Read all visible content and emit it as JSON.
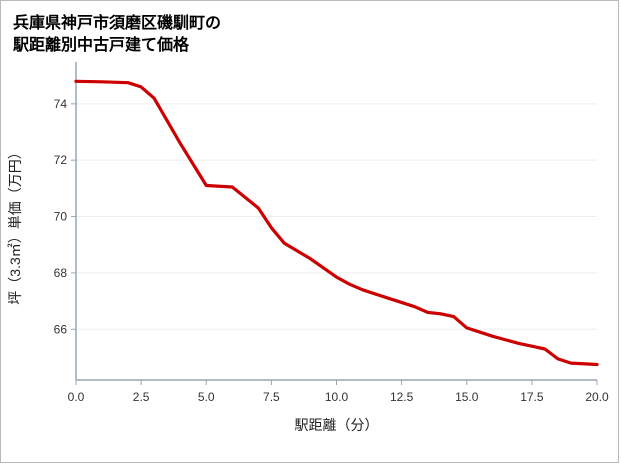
{
  "title": {
    "line1": "兵庫県神戸市須磨区磯馴町の",
    "line2": "駅距離別中古戸建て価格"
  },
  "chart_data": {
    "type": "line",
    "title": "兵庫県神戸市須磨区磯馴町の駅距離別中古戸建て価格",
    "xlabel": "駅距離（分）",
    "ylabel": "坪（3.3㎡）単価（万円）",
    "xlim": [
      0,
      20
    ],
    "ylim": [
      64.2,
      75.2
    ],
    "xticks": [
      0,
      2.5,
      5,
      7.5,
      10,
      12.5,
      15,
      17.5,
      20
    ],
    "yticks": [
      66,
      68,
      70,
      72,
      74
    ],
    "grid": true,
    "legend": "none",
    "points": [
      [
        0,
        74.8
      ],
      [
        1,
        74.78
      ],
      [
        2,
        74.75
      ],
      [
        2.5,
        74.6
      ],
      [
        3,
        74.2
      ],
      [
        4,
        72.6
      ],
      [
        5,
        71.1
      ],
      [
        6,
        71.05
      ],
      [
        7,
        70.3
      ],
      [
        7.5,
        69.6
      ],
      [
        8,
        69.05
      ],
      [
        9,
        68.5
      ],
      [
        10,
        67.85
      ],
      [
        10.5,
        67.6
      ],
      [
        11,
        67.4
      ],
      [
        12,
        67.1
      ],
      [
        13,
        66.8
      ],
      [
        13.5,
        66.6
      ],
      [
        14,
        66.55
      ],
      [
        14.5,
        66.45
      ],
      [
        15,
        66.05
      ],
      [
        16,
        65.75
      ],
      [
        17,
        65.5
      ],
      [
        17.5,
        65.4
      ],
      [
        18,
        65.3
      ],
      [
        18.5,
        64.95
      ],
      [
        19,
        64.8
      ],
      [
        20,
        64.75
      ]
    ],
    "colors": {
      "line": "#cc0000",
      "axis": "#9aa5b1",
      "grid": "#ededed",
      "text": "#333333"
    }
  }
}
